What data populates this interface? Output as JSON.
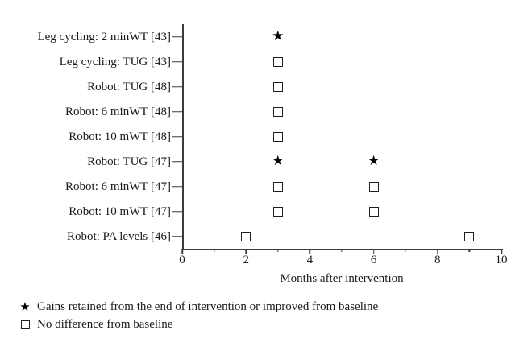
{
  "chart_data": {
    "type": "scatter",
    "title": "",
    "xlabel": "Months after intervention",
    "xlim": [
      0,
      10
    ],
    "x_major_ticks": [
      0,
      2,
      4,
      6,
      8,
      10
    ],
    "x_minor_ticks": [
      1,
      3,
      5,
      7,
      9
    ],
    "grid": false,
    "legend_position": "below-left",
    "rows": [
      {
        "label": "Leg cycling: 2 minWT [43]",
        "points": [
          {
            "x": 3,
            "marker": "star"
          }
        ]
      },
      {
        "label": "Leg cycling: TUG [43]",
        "points": [
          {
            "x": 3,
            "marker": "square"
          }
        ]
      },
      {
        "label": "Robot: TUG [48]",
        "points": [
          {
            "x": 3,
            "marker": "square"
          }
        ]
      },
      {
        "label": "Robot: 6 minWT [48]",
        "points": [
          {
            "x": 3,
            "marker": "square"
          }
        ]
      },
      {
        "label": "Robot: 10 mWT [48]",
        "points": [
          {
            "x": 3,
            "marker": "square"
          }
        ]
      },
      {
        "label": "Robot: TUG [47]",
        "points": [
          {
            "x": 3,
            "marker": "star"
          },
          {
            "x": 6,
            "marker": "star"
          }
        ]
      },
      {
        "label": "Robot: 6 minWT [47]",
        "points": [
          {
            "x": 3,
            "marker": "square"
          },
          {
            "x": 6,
            "marker": "square"
          }
        ]
      },
      {
        "label": "Robot: 10 mWT [47]",
        "points": [
          {
            "x": 3,
            "marker": "square"
          },
          {
            "x": 6,
            "marker": "square"
          }
        ]
      },
      {
        "label": "Robot: PA levels [46]",
        "points": [
          {
            "x": 2,
            "marker": "square"
          },
          {
            "x": 9,
            "marker": "square"
          }
        ]
      }
    ],
    "legend": [
      {
        "marker": "star",
        "label": "Gains retained from the end of intervention or improved from baseline"
      },
      {
        "marker": "square",
        "label": "No difference from baseline"
      }
    ]
  },
  "icons": {
    "star": "★",
    "square": "open-square"
  },
  "colors": {
    "marker": "#000000",
    "axis": "#3a3a3a",
    "text": "#1a1a1a",
    "background": "#ffffff"
  }
}
